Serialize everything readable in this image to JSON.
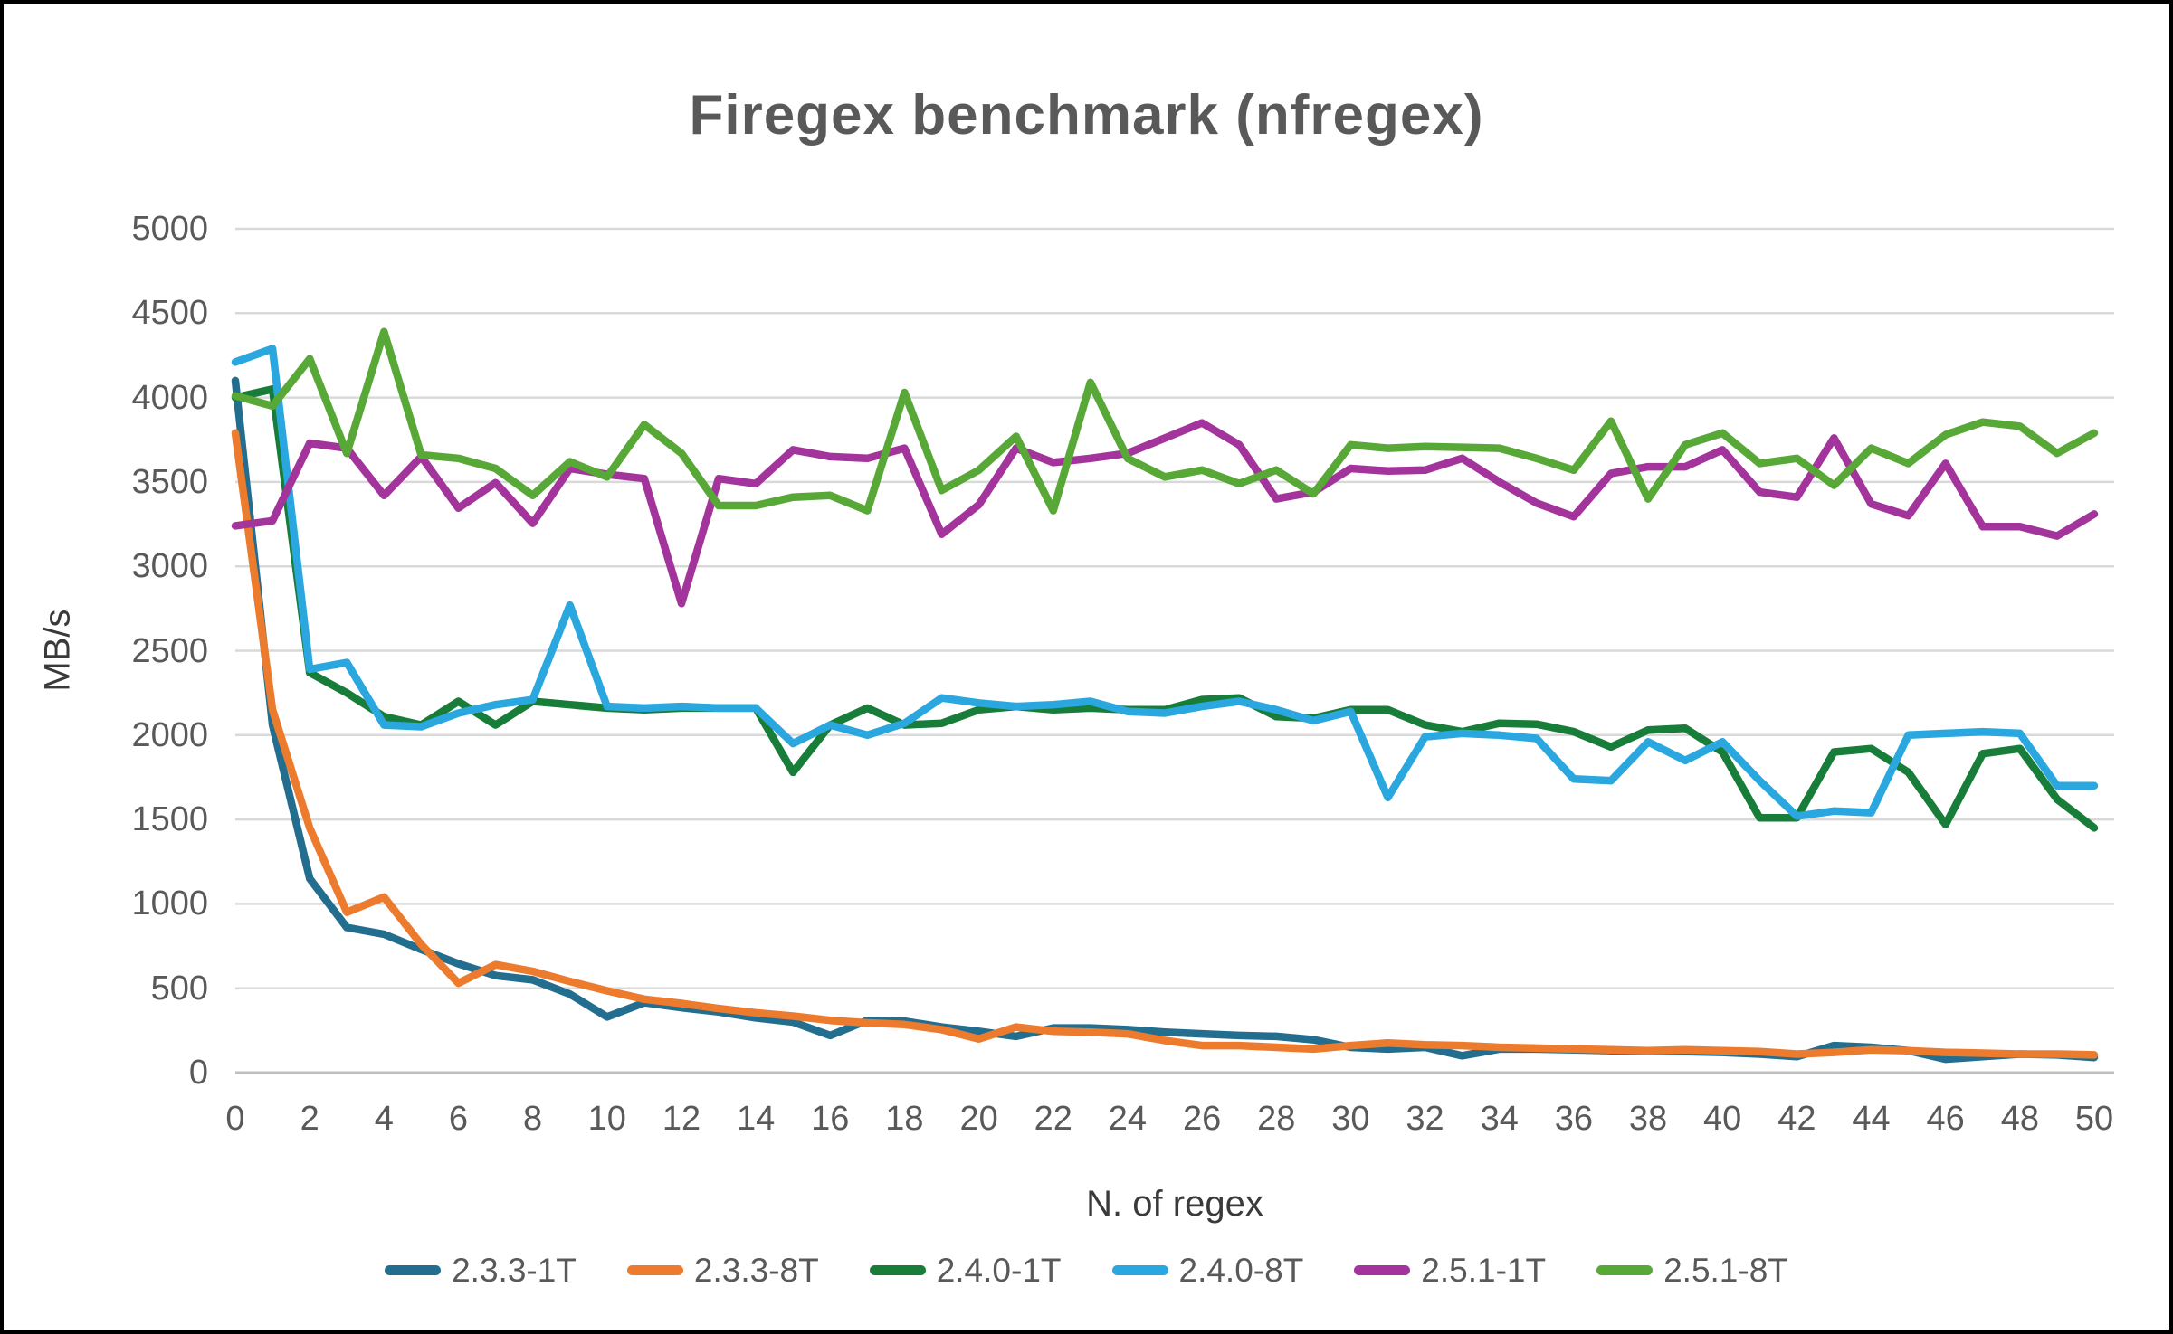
{
  "window": {
    "background_color": "#ffffff",
    "border_color": "#000000"
  },
  "styles": {
    "text_color": "#595959",
    "gridline_color": "#D9D9D9",
    "axis_line_color": "#BFBFBF",
    "line_width": 8.5
  },
  "chart_data": {
    "type": "line",
    "title": "Firegex benchmark (nfregex)",
    "xlabel": "N. of regex",
    "ylabel": "MB/s",
    "xlim": [
      0,
      50
    ],
    "ylim": [
      0,
      5000
    ],
    "grid": "horizontal",
    "legend_position": "bottom",
    "y_ticks": [
      0,
      500,
      1000,
      1500,
      2000,
      2500,
      3000,
      3500,
      4000,
      4500,
      5000
    ],
    "x_ticks": [
      0,
      2,
      4,
      6,
      8,
      10,
      12,
      14,
      16,
      18,
      20,
      22,
      24,
      26,
      28,
      30,
      32,
      34,
      36,
      38,
      40,
      42,
      44,
      46,
      48,
      50
    ],
    "x": [
      0,
      1,
      2,
      3,
      4,
      5,
      6,
      7,
      8,
      9,
      10,
      11,
      12,
      13,
      14,
      15,
      16,
      17,
      18,
      19,
      20,
      21,
      22,
      23,
      24,
      25,
      26,
      27,
      28,
      29,
      30,
      31,
      32,
      33,
      34,
      35,
      36,
      37,
      38,
      39,
      40,
      41,
      42,
      43,
      44,
      45,
      46,
      47,
      48,
      49,
      50
    ],
    "series": [
      {
        "name": "2.3.3-1T",
        "color": "#236D8E",
        "values": [
          4100,
          2060,
          1150,
          860,
          820,
          730,
          645,
          575,
          550,
          465,
          330,
          415,
          385,
          360,
          325,
          300,
          220,
          310,
          305,
          270,
          245,
          215,
          265,
          265,
          255,
          240,
          230,
          220,
          215,
          195,
          150,
          140,
          150,
          100,
          140,
          140,
          135,
          130,
          130,
          125,
          120,
          110,
          95,
          160,
          150,
          130,
          80,
          95,
          110,
          105,
          90
        ]
      },
      {
        "name": "2.3.3-8T",
        "color": "#EC7B2E",
        "values": [
          3790,
          2150,
          1450,
          950,
          1040,
          760,
          530,
          640,
          600,
          540,
          485,
          435,
          410,
          380,
          355,
          335,
          310,
          295,
          285,
          255,
          200,
          270,
          245,
          240,
          230,
          190,
          160,
          160,
          150,
          140,
          160,
          175,
          165,
          160,
          150,
          145,
          140,
          135,
          130,
          135,
          130,
          125,
          110,
          120,
          135,
          130,
          120,
          115,
          110,
          110,
          105
        ]
      },
      {
        "name": "2.4.0-1T",
        "color": "#177D39",
        "values": [
          4000,
          4050,
          2370,
          2250,
          2110,
          2060,
          2200,
          2060,
          2200,
          2180,
          2160,
          2150,
          2160,
          2160,
          2160,
          1780,
          2060,
          2160,
          2060,
          2070,
          2150,
          2170,
          2150,
          2160,
          2150,
          2150,
          2210,
          2220,
          2110,
          2100,
          2150,
          2150,
          2060,
          2020,
          2070,
          2065,
          2020,
          1930,
          2030,
          2040,
          1900,
          1510,
          1510,
          1900,
          1920,
          1780,
          1470,
          1890,
          1920,
          1620,
          1450
        ]
      },
      {
        "name": "2.4.0-8T",
        "color": "#2AA7DE",
        "values": [
          4210,
          4290,
          2390,
          2430,
          2060,
          2050,
          2130,
          2180,
          2210,
          2770,
          2170,
          2160,
          2170,
          2160,
          2160,
          1950,
          2060,
          2000,
          2070,
          2220,
          2190,
          2170,
          2180,
          2200,
          2140,
          2130,
          2170,
          2200,
          2150,
          2085,
          2140,
          1630,
          1990,
          2010,
          2000,
          1980,
          1740,
          1730,
          1960,
          1850,
          1960,
          1730,
          1520,
          1550,
          1540,
          2000,
          2010,
          2020,
          2010,
          1700,
          1700
        ]
      },
      {
        "name": "2.5.1-1T",
        "color": "#A2349C",
        "values": [
          3240,
          3270,
          3730,
          3700,
          3420,
          3650,
          3345,
          3495,
          3255,
          3580,
          3545,
          3520,
          2780,
          3520,
          3490,
          3690,
          3650,
          3640,
          3700,
          3190,
          3365,
          3700,
          3615,
          3640,
          3670,
          3760,
          3850,
          3720,
          3400,
          3440,
          3580,
          3565,
          3570,
          3640,
          3500,
          3375,
          3295,
          3550,
          3590,
          3590,
          3690,
          3440,
          3410,
          3760,
          3370,
          3300,
          3610,
          3235,
          3235,
          3180,
          3310
        ]
      },
      {
        "name": "2.5.1-8T",
        "color": "#58A838",
        "values": [
          4010,
          3950,
          4230,
          3670,
          4390,
          3660,
          3640,
          3580,
          3420,
          3620,
          3530,
          3840,
          3670,
          3360,
          3360,
          3410,
          3420,
          3330,
          4030,
          3450,
          3570,
          3770,
          3330,
          4090,
          3640,
          3530,
          3570,
          3490,
          3570,
          3430,
          3720,
          3700,
          3710,
          3705,
          3700,
          3640,
          3570,
          3860,
          3400,
          3720,
          3790,
          3610,
          3640,
          3480,
          3700,
          3610,
          3780,
          3855,
          3830,
          3670,
          3790
        ]
      }
    ]
  }
}
